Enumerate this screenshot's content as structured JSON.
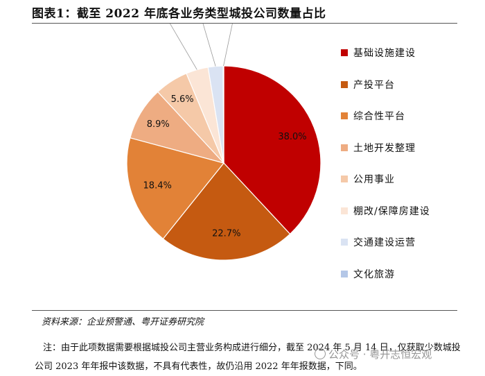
{
  "figure": {
    "title": "图表1：截至 2022 年底各业务类型城投公司数量占比",
    "source": "资料来源：企业预警通、粤开证券研究院",
    "note": "注：由于此项数据需要根据城投公司主营业务构成进行细分，截至 2024 年 5 月 14 日，仅获取少数城投公司 2023 年年报中该数据，不具有代表性，故仍沿用 2022 年年报数据，下同。",
    "watermark": "公众号 · 粤开志恒宏观"
  },
  "chart_data": {
    "type": "pie",
    "title": "图表1：截至 2022 年底各业务类型城投公司数量占比",
    "start_angle_deg": 0,
    "direction": "clockwise",
    "legend_position": "right",
    "series": [
      {
        "name": "基础设施建设",
        "value": 38.0,
        "label": "38.0%",
        "color": "#c00000"
      },
      {
        "name": "产投平台",
        "value": 22.7,
        "label": "22.7%",
        "color": "#c55a11"
      },
      {
        "name": "综合性平台",
        "value": 18.4,
        "label": "18.4%",
        "color": "#e28237"
      },
      {
        "name": "土地开发整理",
        "value": 8.9,
        "label": "8.9%",
        "color": "#eeac82"
      },
      {
        "name": "公用事业",
        "value": 5.6,
        "label": "5.6%",
        "color": "#f5c9a8"
      },
      {
        "name": "棚改/保障房建设",
        "value": 3.7,
        "label": "3.7%",
        "color": "#fbe5d6"
      },
      {
        "name": "交通建设运营",
        "value": 2.5,
        "label": "2.5%",
        "color": "#dae3f3"
      },
      {
        "name": "文化旅游",
        "value": 0.1,
        "label": "0.1%",
        "color": "#b4c7e7"
      }
    ]
  }
}
